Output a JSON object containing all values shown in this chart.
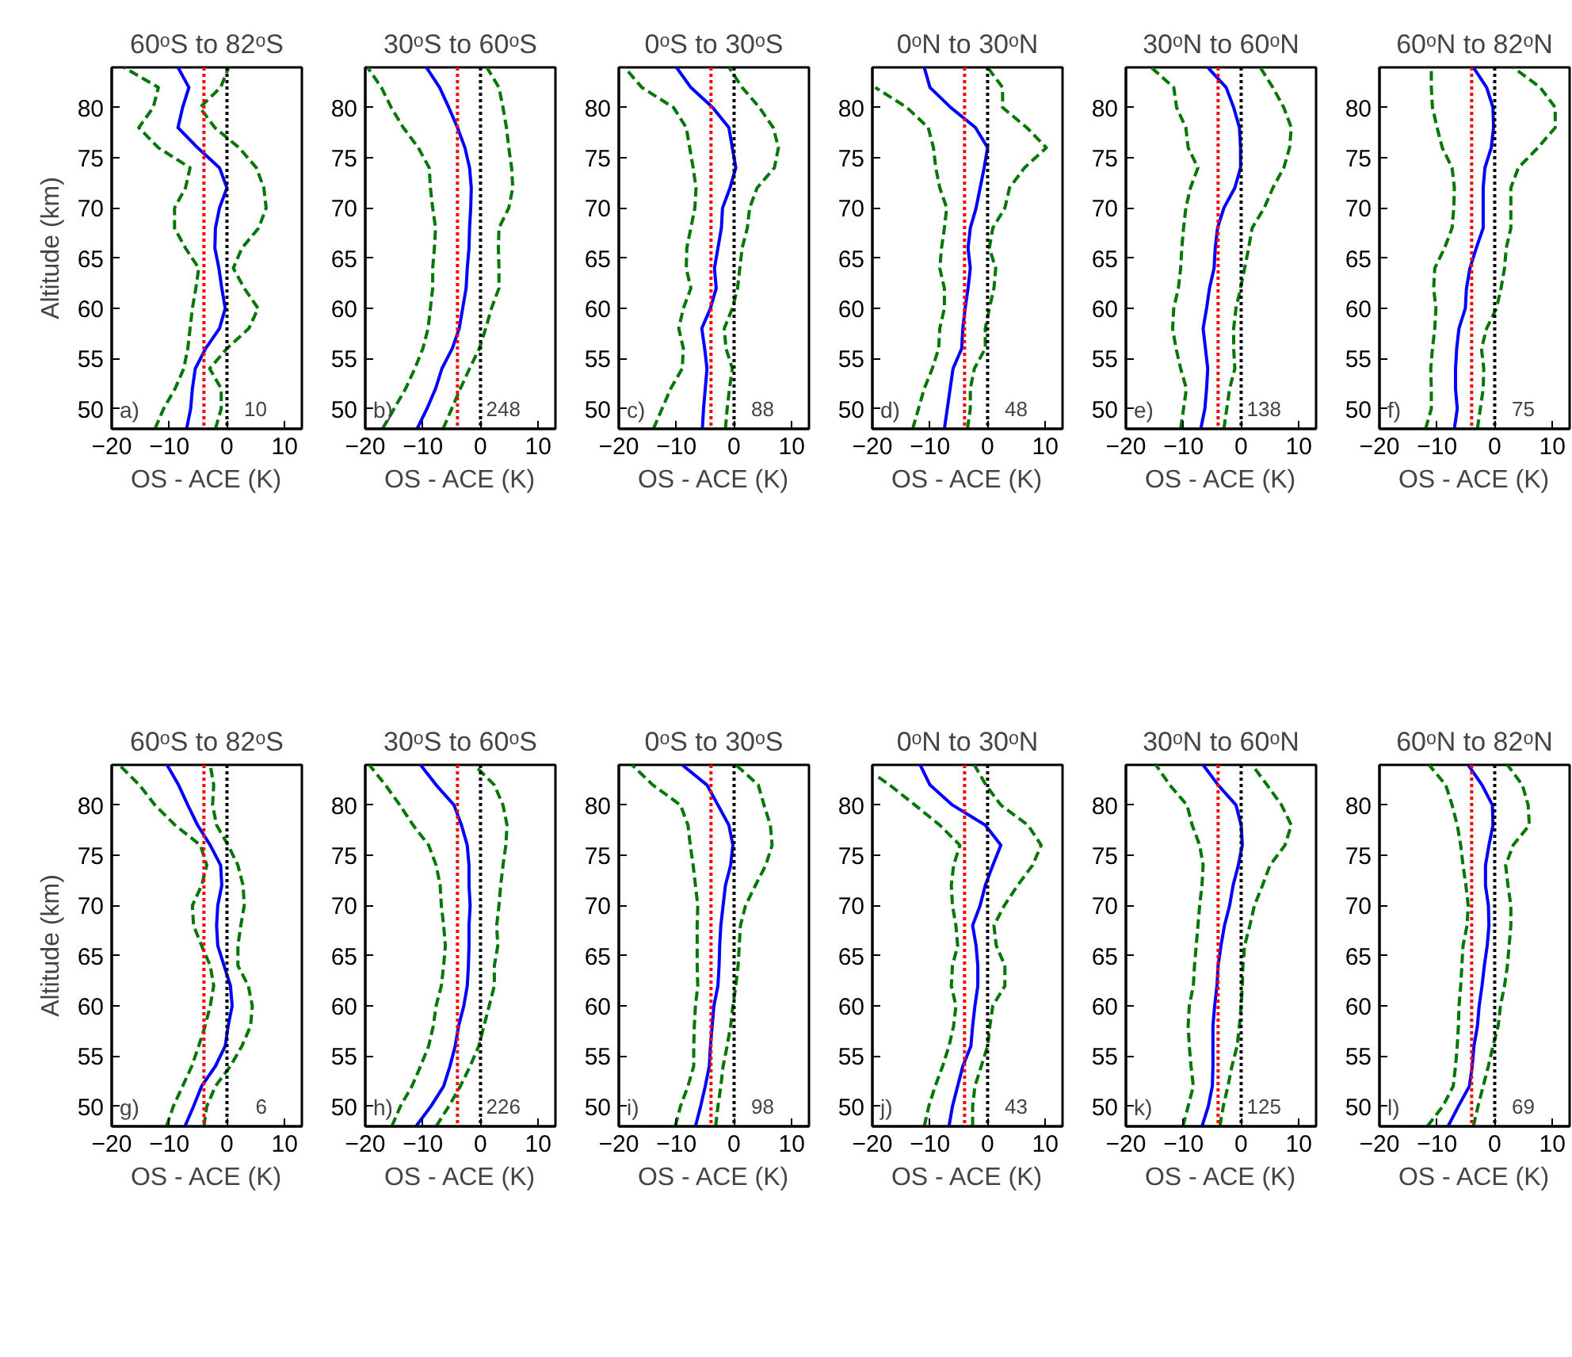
{
  "chart_data": [
    {
      "type": "line",
      "title": "60ᵒS to 82ᵒS",
      "xlabel": "OS - ACE (K)",
      "ylabel": "Altitude (km)",
      "xlim": [
        -20,
        13
      ],
      "ylim": [
        48,
        84
      ],
      "xticks": [
        -20,
        -10,
        0,
        10
      ],
      "yticks": [
        50,
        55,
        60,
        65,
        70,
        75,
        80
      ],
      "grid": false,
      "annotations": [
        "a)",
        "10"
      ],
      "ref_lines": [
        {
          "axis": "x",
          "value": -4,
          "color": "#ff0000",
          "line_style": "dotted"
        },
        {
          "axis": "x",
          "value": 0,
          "color": "#000000",
          "line_style": "dotted"
        }
      ],
      "series": [
        {
          "color": "#0000ff",
          "line_style": "solid",
          "x": [
            -7,
            -6.3,
            -6,
            -5.5,
            -3.7,
            -1.3,
            -0.3,
            -0.9,
            -1.4,
            -2.1,
            -2,
            -1.3,
            0,
            -1.3,
            -5.1,
            -8.5,
            -7.7,
            -6.6,
            -8.5
          ],
          "values": [
            48,
            50,
            52,
            54,
            56,
            58,
            60,
            62,
            64,
            66,
            68,
            70,
            72,
            74,
            76,
            78,
            80,
            82,
            84
          ]
        },
        {
          "color": "#007700",
          "line_style": "dashed",
          "x": [
            -12.5,
            -11,
            -9,
            -7.5,
            -6.8,
            -6.4,
            -6,
            -5.4,
            -4.9,
            -7.2,
            -9.1,
            -9.1,
            -7.2,
            -6.4,
            -11.9,
            -15.3,
            -12.8,
            -11.9,
            -17.9
          ],
          "values": [
            48,
            50,
            52,
            54,
            56,
            58,
            60,
            62,
            64,
            66,
            68,
            70,
            72,
            74,
            76,
            78,
            80,
            82,
            84
          ]
        },
        {
          "color": "#007700",
          "line_style": "dashed",
          "x": [
            -2,
            -1,
            -1,
            -3,
            0,
            3.8,
            5.4,
            3,
            1.1,
            2.6,
            5.5,
            6.8,
            6.4,
            5.1,
            2.1,
            -2.1,
            -4.7,
            -1.1,
            0.3
          ],
          "values": [
            48,
            50,
            52,
            54,
            56,
            58,
            60,
            62,
            64,
            66,
            68,
            70,
            72,
            74,
            76,
            78,
            80,
            82,
            84
          ]
        }
      ]
    },
    {
      "type": "line",
      "title": "30ᵒS to 60ᵒS",
      "xlabel": "OS - ACE (K)",
      "xlim": [
        -20,
        13
      ],
      "ylim": [
        48,
        84
      ],
      "xticks": [
        -20,
        -10,
        0,
        10
      ],
      "yticks": [
        50,
        55,
        60,
        65,
        70,
        75,
        80
      ],
      "grid": false,
      "annotations": [
        "b)",
        "248"
      ],
      "ref_lines": [
        {
          "axis": "x",
          "value": -4,
          "color": "#ff0000",
          "line_style": "dotted"
        },
        {
          "axis": "x",
          "value": 0,
          "color": "#000000",
          "line_style": "dotted"
        }
      ],
      "series": [
        {
          "color": "#0000ff",
          "line_style": "solid",
          "x": [
            -11,
            -9.3,
            -7.8,
            -6.7,
            -4.9,
            -3.7,
            -3.1,
            -2.5,
            -2.3,
            -2,
            -1.9,
            -1.7,
            -1.6,
            -1.9,
            -2.7,
            -4,
            -5.5,
            -7.1,
            -9.4
          ],
          "values": [
            48,
            50,
            52,
            54,
            56,
            58,
            60,
            62,
            64,
            66,
            68,
            70,
            72,
            74,
            76,
            78,
            80,
            82,
            84
          ]
        },
        {
          "color": "#007700",
          "line_style": "dashed",
          "x": [
            -17,
            -15,
            -13,
            -11.4,
            -10,
            -9.1,
            -8.7,
            -8.3,
            -8.3,
            -8,
            -7.8,
            -8.3,
            -8.7,
            -8.9,
            -10.8,
            -13.4,
            -15.5,
            -17.2,
            -19.6
          ],
          "values": [
            48,
            50,
            52,
            54,
            56,
            58,
            60,
            62,
            64,
            66,
            68,
            70,
            72,
            74,
            76,
            78,
            80,
            82,
            84
          ]
        },
        {
          "color": "#007700",
          "line_style": "dashed",
          "x": [
            -6.5,
            -5,
            -3.5,
            -1.9,
            -0.2,
            0.9,
            1.9,
            3.2,
            3.2,
            3.1,
            3.2,
            4.9,
            5.6,
            5.4,
            4.9,
            4.5,
            3.9,
            3.2,
            1.1
          ],
          "values": [
            48,
            50,
            52,
            54,
            56,
            58,
            60,
            62,
            64,
            66,
            68,
            70,
            72,
            74,
            76,
            78,
            80,
            82,
            84
          ]
        }
      ]
    },
    {
      "type": "line",
      "title": "0ᵒS to 30ᵒS",
      "xlabel": "OS - ACE (K)",
      "xlim": [
        -20,
        13
      ],
      "ylim": [
        48,
        84
      ],
      "xticks": [
        -20,
        -10,
        0,
        10
      ],
      "yticks": [
        50,
        55,
        60,
        65,
        70,
        75,
        80
      ],
      "grid": false,
      "annotations": [
        "c)",
        "88"
      ],
      "ref_lines": [
        {
          "axis": "x",
          "value": -4,
          "color": "#ff0000",
          "line_style": "dotted"
        },
        {
          "axis": "x",
          "value": 0,
          "color": "#000000",
          "line_style": "dotted"
        }
      ],
      "series": [
        {
          "color": "#0000ff",
          "line_style": "solid",
          "x": [
            -5.5,
            -5.3,
            -5,
            -4.7,
            -5.1,
            -5.6,
            -4.1,
            -3.1,
            -3.4,
            -2.8,
            -2.2,
            -2,
            -0.7,
            0.3,
            -0.3,
            -0.9,
            -3.7,
            -7.5,
            -10
          ],
          "values": [
            48,
            50,
            52,
            54,
            56,
            58,
            60,
            62,
            64,
            66,
            68,
            70,
            72,
            74,
            76,
            78,
            80,
            82,
            84
          ]
        },
        {
          "color": "#007700",
          "line_style": "dashed",
          "x": [
            -14,
            -12.5,
            -11,
            -9,
            -8.8,
            -9.6,
            -8.8,
            -7.5,
            -8.3,
            -8.2,
            -7.5,
            -6.8,
            -6.6,
            -7.1,
            -7.7,
            -8.3,
            -10.5,
            -16,
            -19
          ],
          "values": [
            48,
            50,
            52,
            54,
            56,
            58,
            60,
            62,
            64,
            66,
            68,
            70,
            72,
            74,
            76,
            78,
            80,
            82,
            84
          ]
        },
        {
          "color": "#007700",
          "line_style": "dashed",
          "x": [
            -1.5,
            -1.2,
            -0.8,
            -0.3,
            -1.4,
            -1.7,
            -0.3,
            0.6,
            1,
            1.4,
            2.3,
            2.7,
            4,
            7,
            7.7,
            6.8,
            4.4,
            1.4,
            -0.9
          ],
          "values": [
            48,
            50,
            52,
            54,
            56,
            58,
            60,
            62,
            64,
            66,
            68,
            70,
            72,
            74,
            76,
            78,
            80,
            82,
            84
          ]
        }
      ]
    },
    {
      "type": "line",
      "title": "0ᵒN to 30ᵒN",
      "xlabel": "OS - ACE (K)",
      "xlim": [
        -20,
        13
      ],
      "ylim": [
        48,
        84
      ],
      "xticks": [
        -20,
        -10,
        0,
        10
      ],
      "yticks": [
        50,
        55,
        60,
        65,
        70,
        75,
        80
      ],
      "grid": false,
      "annotations": [
        "d)",
        "48"
      ],
      "ref_lines": [
        {
          "axis": "x",
          "value": -4,
          "color": "#ff0000",
          "line_style": "dotted"
        },
        {
          "axis": "x",
          "value": 0,
          "color": "#000000",
          "line_style": "dotted"
        }
      ],
      "series": [
        {
          "color": "#0000ff",
          "line_style": "solid",
          "x": [
            -7.5,
            -7,
            -6.5,
            -6,
            -4.5,
            -4.3,
            -3.9,
            -3.4,
            -3,
            -3.4,
            -3,
            -2,
            -1.3,
            -0.6,
            0,
            -2.1,
            -6.4,
            -10,
            -11
          ],
          "values": [
            48,
            50,
            52,
            54,
            56,
            58,
            60,
            62,
            64,
            66,
            68,
            70,
            72,
            74,
            76,
            78,
            80,
            82,
            84
          ]
        },
        {
          "color": "#007700",
          "line_style": "dashed",
          "x": [
            -13,
            -12,
            -11,
            -9.6,
            -8.5,
            -8.3,
            -7.5,
            -7.5,
            -8.3,
            -8,
            -7.5,
            -7.1,
            -8.3,
            -9,
            -9.4,
            -10.3,
            -14,
            -19.5
          ],
          "values": [
            48,
            50,
            52,
            54,
            56,
            58,
            60,
            62,
            64,
            66,
            68,
            70,
            72,
            74,
            76,
            78,
            80,
            82
          ]
        },
        {
          "color": "#007700",
          "line_style": "dashed",
          "x": [
            -3.5,
            -3,
            -3,
            -2.3,
            -0.4,
            -0.4,
            0.3,
            1.1,
            1.4,
            0.3,
            0.9,
            3,
            3.8,
            6.4,
            10.2,
            6.8,
            2.6,
            2.6,
            0
          ],
          "values": [
            48,
            50,
            52,
            54,
            56,
            58,
            60,
            62,
            64,
            66,
            68,
            70,
            72,
            74,
            76,
            78,
            80,
            82,
            84
          ]
        }
      ]
    },
    {
      "type": "line",
      "title": "30ᵒN to 60ᵒN",
      "xlabel": "OS - ACE (K)",
      "xlim": [
        -20,
        13
      ],
      "ylim": [
        48,
        84
      ],
      "xticks": [
        -20,
        -10,
        0,
        10
      ],
      "yticks": [
        50,
        55,
        60,
        65,
        70,
        75,
        80
      ],
      "grid": false,
      "annotations": [
        "e)",
        "138"
      ],
      "ref_lines": [
        {
          "axis": "x",
          "value": -4,
          "color": "#ff0000",
          "line_style": "dotted"
        },
        {
          "axis": "x",
          "value": 0,
          "color": "#000000",
          "line_style": "dotted"
        }
      ],
      "series": [
        {
          "color": "#0000ff",
          "line_style": "solid",
          "x": [
            -7,
            -6.3,
            -6,
            -5.8,
            -6.2,
            -6.6,
            -6,
            -5.5,
            -4.7,
            -4.5,
            -4.1,
            -3,
            -1.1,
            -0.1,
            -0.1,
            -0.3,
            -1.3,
            -2.6,
            -5.8
          ],
          "values": [
            48,
            50,
            52,
            54,
            56,
            58,
            60,
            62,
            64,
            66,
            68,
            70,
            72,
            74,
            76,
            78,
            80,
            82,
            84
          ]
        },
        {
          "color": "#007700",
          "line_style": "dashed",
          "x": [
            -10.5,
            -10,
            -9.5,
            -10.5,
            -11.3,
            -11.9,
            -11.7,
            -10.9,
            -10.5,
            -10.3,
            -10,
            -9.6,
            -8.8,
            -7.5,
            -9.2,
            -9.6,
            -11.2,
            -11.7,
            -15.6
          ],
          "values": [
            48,
            50,
            52,
            54,
            56,
            58,
            60,
            62,
            64,
            66,
            68,
            70,
            72,
            74,
            76,
            78,
            80,
            82,
            84
          ]
        },
        {
          "color": "#007700",
          "line_style": "dashed",
          "x": [
            -3,
            -2.5,
            -2,
            -1.1,
            -1.3,
            -1.3,
            -0.9,
            -0.1,
            0.6,
            1.3,
            1.9,
            4,
            5.5,
            7.4,
            8.4,
            8.7,
            7.4,
            5.5,
            3.3
          ],
          "values": [
            48,
            50,
            52,
            54,
            56,
            58,
            60,
            62,
            64,
            66,
            68,
            70,
            72,
            74,
            76,
            78,
            80,
            82,
            84
          ]
        }
      ]
    },
    {
      "type": "line",
      "title": "60ᵒN to 82ᵒN",
      "xlabel": "OS - ACE (K)",
      "xlim": [
        -20,
        13
      ],
      "ylim": [
        48,
        84
      ],
      "xticks": [
        -20,
        -10,
        0,
        10
      ],
      "yticks": [
        50,
        55,
        60,
        65,
        70,
        75,
        80
      ],
      "grid": false,
      "annotations": [
        "f)",
        "75"
      ],
      "ref_lines": [
        {
          "axis": "x",
          "value": -4,
          "color": "#ff0000",
          "line_style": "dotted"
        },
        {
          "axis": "x",
          "value": 0,
          "color": "#000000",
          "line_style": "dotted"
        }
      ],
      "series": [
        {
          "color": "#0000ff",
          "line_style": "solid",
          "x": [
            -7,
            -6.5,
            -6.8,
            -6.8,
            -6.6,
            -6.2,
            -5.1,
            -4.9,
            -4.3,
            -3.2,
            -2,
            -2,
            -2,
            -1.7,
            -0.6,
            -0.2,
            -0.3,
            -1.4,
            -3.7
          ],
          "values": [
            48,
            50,
            52,
            54,
            56,
            58,
            60,
            62,
            64,
            66,
            68,
            70,
            72,
            74,
            76,
            78,
            80,
            82,
            84
          ]
        },
        {
          "color": "#007700",
          "line_style": "dashed",
          "x": [
            -12,
            -11,
            -11,
            -11.1,
            -10.8,
            -10.4,
            -10.2,
            -10.6,
            -10.4,
            -8.7,
            -7.4,
            -7.1,
            -7,
            -7.4,
            -9.1,
            -10,
            -10.8,
            -11,
            -11
          ],
          "values": [
            48,
            50,
            52,
            54,
            56,
            58,
            60,
            62,
            64,
            66,
            68,
            70,
            72,
            74,
            76,
            78,
            80,
            82,
            84
          ]
        },
        {
          "color": "#007700",
          "line_style": "dashed",
          "x": [
            -3,
            -2.5,
            -2,
            -1.9,
            -2.3,
            -1.4,
            0.3,
            1.1,
            1.7,
            2,
            2.8,
            2.8,
            2.8,
            4.1,
            7.5,
            10.5,
            10.5,
            7.9,
            3.2
          ],
          "values": [
            48,
            50,
            52,
            54,
            56,
            58,
            60,
            62,
            64,
            66,
            68,
            70,
            72,
            74,
            76,
            78,
            80,
            82,
            84
          ]
        }
      ]
    },
    {
      "type": "line",
      "title": "60ᵒS to 82ᵒS",
      "xlabel": "OS - ACE (K)",
      "ylabel": "Altitude (km)",
      "xlim": [
        -20,
        13
      ],
      "ylim": [
        48,
        84
      ],
      "xticks": [
        -20,
        -10,
        0,
        10
      ],
      "yticks": [
        50,
        55,
        60,
        65,
        70,
        75,
        80
      ],
      "grid": false,
      "annotations": [
        "g)",
        "6"
      ],
      "ref_lines": [
        {
          "axis": "x",
          "value": -4,
          "color": "#ff0000",
          "line_style": "dotted"
        },
        {
          "axis": "x",
          "value": 0,
          "color": "#000000",
          "line_style": "dotted"
        }
      ],
      "series": [
        {
          "color": "#0000ff",
          "line_style": "solid",
          "x": [
            -7.3,
            -5.8,
            -4.4,
            -2,
            -0.3,
            0.2,
            0.9,
            0.6,
            -0.5,
            -1.6,
            -1.8,
            -1.6,
            -0.9,
            -1.1,
            -2.9,
            -5.1,
            -6.8,
            -8.4,
            -10.4
          ],
          "values": [
            48,
            50,
            52,
            54,
            56,
            58,
            60,
            62,
            64,
            66,
            68,
            70,
            72,
            74,
            76,
            78,
            80,
            82,
            84
          ]
        },
        {
          "color": "#007700",
          "line_style": "dashed",
          "x": [
            -10.5,
            -9.3,
            -7.7,
            -6.1,
            -4.9,
            -3.8,
            -2.9,
            -2.3,
            -2.9,
            -4.4,
            -5.8,
            -6,
            -4.4,
            -3.5,
            -4.6,
            -9,
            -12.5,
            -15.2,
            -18.7
          ],
          "values": [
            48,
            50,
            52,
            54,
            56,
            58,
            60,
            62,
            64,
            66,
            68,
            70,
            72,
            74,
            76,
            78,
            80,
            82,
            84
          ]
        },
        {
          "color": "#007700",
          "line_style": "dashed",
          "x": [
            -4,
            -3.5,
            -2,
            0.6,
            2.6,
            4.1,
            4.4,
            3.7,
            1.9,
            1.9,
            2.4,
            3,
            2.8,
            1.9,
            0.2,
            -1.8,
            -2.5,
            -2.3,
            -2.9
          ],
          "values": [
            48,
            50,
            52,
            54,
            56,
            58,
            60,
            62,
            64,
            66,
            68,
            70,
            72,
            74,
            76,
            78,
            80,
            82,
            84
          ]
        }
      ]
    },
    {
      "type": "line",
      "title": "30ᵒS to 60ᵒS",
      "xlabel": "OS - ACE (K)",
      "xlim": [
        -20,
        13
      ],
      "ylim": [
        48,
        84
      ],
      "xticks": [
        -20,
        -10,
        0,
        10
      ],
      "yticks": [
        50,
        55,
        60,
        65,
        70,
        75,
        80
      ],
      "grid": false,
      "annotations": [
        "h)",
        "226"
      ],
      "ref_lines": [
        {
          "axis": "x",
          "value": -4,
          "color": "#ff0000",
          "line_style": "dotted"
        },
        {
          "axis": "x",
          "value": 0,
          "color": "#000000",
          "line_style": "dotted"
        }
      ],
      "series": [
        {
          "color": "#0000ff",
          "line_style": "solid",
          "x": [
            -11.2,
            -8.6,
            -6.4,
            -5.3,
            -4.4,
            -3.8,
            -2.9,
            -2.3,
            -2.1,
            -2,
            -2,
            -1.8,
            -2,
            -2,
            -2.3,
            -3.3,
            -4.6,
            -7.7,
            -10.4
          ],
          "values": [
            48,
            50,
            52,
            54,
            56,
            58,
            60,
            62,
            64,
            66,
            68,
            70,
            72,
            74,
            76,
            78,
            80,
            82,
            84
          ]
        },
        {
          "color": "#007700",
          "line_style": "dashed",
          "x": [
            -15.4,
            -13.9,
            -11.9,
            -10.4,
            -9,
            -8.2,
            -7.7,
            -6.8,
            -6.4,
            -6.1,
            -6.4,
            -6.8,
            -7,
            -7.7,
            -9,
            -11.7,
            -14,
            -16.5,
            -19.3
          ],
          "values": [
            48,
            50,
            52,
            54,
            56,
            58,
            60,
            62,
            64,
            66,
            68,
            70,
            72,
            74,
            76,
            78,
            80,
            82,
            84
          ]
        },
        {
          "color": "#007700",
          "line_style": "dashed",
          "x": [
            -7.7,
            -5.5,
            -3.5,
            -1.8,
            -0.3,
            0.6,
            1.5,
            2.4,
            2.4,
            3,
            2.8,
            3.2,
            3.5,
            3.9,
            4.4,
            4.6,
            3.9,
            2.4,
            -1.1
          ],
          "values": [
            48,
            50,
            52,
            54,
            56,
            58,
            60,
            62,
            64,
            66,
            68,
            70,
            72,
            74,
            76,
            78,
            80,
            82,
            84
          ]
        }
      ]
    },
    {
      "type": "line",
      "title": "0ᵒS to 30ᵒS",
      "xlabel": "OS - ACE (K)",
      "xlim": [
        -20,
        13
      ],
      "ylim": [
        48,
        84
      ],
      "xticks": [
        -20,
        -10,
        0,
        10
      ],
      "yticks": [
        50,
        55,
        60,
        65,
        70,
        75,
        80
      ],
      "grid": false,
      "annotations": [
        "i)",
        "98"
      ],
      "ref_lines": [
        {
          "axis": "x",
          "value": -4,
          "color": "#ff0000",
          "line_style": "dotted"
        },
        {
          "axis": "x",
          "value": 0,
          "color": "#000000",
          "line_style": "dotted"
        }
      ],
      "series": [
        {
          "color": "#0000ff",
          "line_style": "solid",
          "x": [
            -6.7,
            -5.8,
            -5,
            -4.3,
            -4.1,
            -3.8,
            -3.5,
            -2.8,
            -2.6,
            -2.5,
            -2.3,
            -1.9,
            -1.5,
            -0.6,
            -0.2,
            -0.9,
            -2.8,
            -4.7,
            -9
          ],
          "values": [
            48,
            50,
            52,
            54,
            56,
            58,
            60,
            62,
            64,
            66,
            68,
            70,
            72,
            74,
            76,
            78,
            80,
            82,
            84
          ]
        },
        {
          "color": "#007700",
          "line_style": "dashed",
          "x": [
            -10.2,
            -9.3,
            -8,
            -7,
            -7,
            -6.9,
            -6.7,
            -6.3,
            -6.4,
            -6.4,
            -6.4,
            -6.3,
            -6.7,
            -7.1,
            -7.6,
            -8,
            -9.3,
            -14.1,
            -17.7
          ],
          "values": [
            48,
            50,
            52,
            54,
            56,
            58,
            60,
            62,
            64,
            66,
            68,
            70,
            72,
            74,
            76,
            78,
            80,
            82,
            84
          ]
        },
        {
          "color": "#007700",
          "line_style": "dashed",
          "x": [
            -3.2,
            -2.8,
            -2.3,
            -1.9,
            -1.2,
            -0.6,
            -0.2,
            0.3,
            0.7,
            0.9,
            1.1,
            2,
            3.7,
            5.5,
            6.6,
            6.3,
            5.2,
            4.2,
            0.3
          ],
          "values": [
            48,
            50,
            52,
            54,
            56,
            58,
            60,
            62,
            64,
            66,
            68,
            70,
            72,
            74,
            76,
            78,
            80,
            82,
            84
          ]
        }
      ]
    },
    {
      "type": "line",
      "title": "0ᵒN to 30ᵒN",
      "xlabel": "OS - ACE (K)",
      "xlim": [
        -20,
        13
      ],
      "ylim": [
        48,
        84
      ],
      "xticks": [
        -20,
        -10,
        0,
        10
      ],
      "yticks": [
        50,
        55,
        60,
        65,
        70,
        75,
        80
      ],
      "grid": false,
      "annotations": [
        "j)",
        "43"
      ],
      "ref_lines": [
        {
          "axis": "x",
          "value": -4,
          "color": "#ff0000",
          "line_style": "dotted"
        },
        {
          "axis": "x",
          "value": 0,
          "color": "#000000",
          "line_style": "dotted"
        }
      ],
      "series": [
        {
          "color": "#0000ff",
          "line_style": "solid",
          "x": [
            -6.7,
            -6.1,
            -5.2,
            -4.3,
            -2.9,
            -2.6,
            -2.2,
            -1.7,
            -1.7,
            -2,
            -2.6,
            -1.3,
            -0.4,
            0.9,
            2.3,
            -0.4,
            -6.1,
            -10,
            -11.7
          ],
          "values": [
            48,
            50,
            52,
            54,
            56,
            58,
            60,
            62,
            64,
            66,
            68,
            70,
            72,
            74,
            76,
            78,
            80,
            82,
            84
          ]
        },
        {
          "color": "#007700",
          "line_style": "dashed",
          "x": [
            -11,
            -10.2,
            -9.1,
            -7.8,
            -6.7,
            -5.9,
            -5.5,
            -6.3,
            -6.1,
            -5.2,
            -5.5,
            -6.1,
            -6.3,
            -5.9,
            -4.8,
            -8.3,
            -12.6,
            -17,
            -19.5
          ],
          "values": [
            48,
            50,
            52,
            54,
            56,
            58,
            60,
            62,
            64,
            66,
            68,
            70,
            72,
            74,
            76,
            78,
            80,
            82,
            83
          ]
        },
        {
          "color": "#007700",
          "line_style": "dashed",
          "x": [
            -2.6,
            -2.6,
            -2.2,
            -1.1,
            0,
            0.4,
            0.9,
            3,
            3,
            1.5,
            1.1,
            2.9,
            5.2,
            7.8,
            9.3,
            7,
            2.3,
            -0.3,
            -2.3
          ],
          "values": [
            48,
            50,
            52,
            54,
            56,
            58,
            60,
            62,
            64,
            66,
            68,
            70,
            72,
            74,
            76,
            78,
            80,
            82,
            84
          ]
        }
      ]
    },
    {
      "type": "line",
      "title": "30ᵒN to 60ᵒN",
      "xlabel": "OS - ACE (K)",
      "xlim": [
        -20,
        13
      ],
      "ylim": [
        48,
        84
      ],
      "xticks": [
        -20,
        -10,
        0,
        10
      ],
      "yticks": [
        50,
        55,
        60,
        65,
        70,
        75,
        80
      ],
      "grid": false,
      "annotations": [
        "k)",
        "125"
      ],
      "ref_lines": [
        {
          "axis": "x",
          "value": -4,
          "color": "#ff0000",
          "line_style": "dotted"
        },
        {
          "axis": "x",
          "value": 0,
          "color": "#000000",
          "line_style": "dotted"
        }
      ],
      "series": [
        {
          "color": "#0000ff",
          "line_style": "solid",
          "x": [
            -6.8,
            -5.7,
            -5,
            -4.9,
            -4.9,
            -4.9,
            -4.6,
            -4.2,
            -4,
            -3.5,
            -2.9,
            -2,
            -1.4,
            -0.5,
            0.2,
            0,
            -0.9,
            -4,
            -6.6
          ],
          "values": [
            48,
            50,
            52,
            54,
            56,
            58,
            60,
            62,
            64,
            66,
            68,
            70,
            72,
            74,
            76,
            78,
            80,
            82,
            84
          ]
        },
        {
          "color": "#007700",
          "line_style": "dashed",
          "x": [
            -10.1,
            -9.2,
            -8.3,
            -8.7,
            -9,
            -9.2,
            -9,
            -8.3,
            -8.1,
            -7.8,
            -7.5,
            -7.2,
            -6.8,
            -6.6,
            -7.2,
            -8.5,
            -9.4,
            -12.4,
            -14.8
          ],
          "values": [
            48,
            50,
            52,
            54,
            56,
            58,
            60,
            62,
            64,
            66,
            68,
            70,
            72,
            74,
            76,
            78,
            80,
            82,
            84
          ]
        },
        {
          "color": "#007700",
          "line_style": "dashed",
          "x": [
            -3.7,
            -3.1,
            -2.3,
            -1.6,
            -0.7,
            -0.3,
            0,
            0.2,
            0.3,
            0.6,
            1.5,
            2.3,
            3.7,
            5,
            7.6,
            8.7,
            7,
            4.5,
            1.9
          ],
          "values": [
            48,
            50,
            52,
            54,
            56,
            58,
            60,
            62,
            64,
            66,
            68,
            70,
            72,
            74,
            76,
            78,
            80,
            82,
            84
          ]
        }
      ]
    },
    {
      "type": "line",
      "title": "60ᵒN to 82ᵒN",
      "xlabel": "OS - ACE (K)",
      "xlim": [
        -20,
        13
      ],
      "ylim": [
        48,
        84
      ],
      "xticks": [
        -20,
        -10,
        0,
        10
      ],
      "yticks": [
        50,
        55,
        60,
        65,
        70,
        75,
        80
      ],
      "grid": false,
      "annotations": [
        "l)",
        "69"
      ],
      "ref_lines": [
        {
          "axis": "x",
          "value": -4,
          "color": "#ff0000",
          "line_style": "dotted"
        },
        {
          "axis": "x",
          "value": 0,
          "color": "#000000",
          "line_style": "dotted"
        }
      ],
      "series": [
        {
          "color": "#0000ff",
          "line_style": "solid",
          "x": [
            -8.1,
            -6.3,
            -4.4,
            -3.9,
            -3.6,
            -3,
            -2.7,
            -2.2,
            -1.8,
            -1.3,
            -1,
            -1.1,
            -1.6,
            -1.6,
            -1,
            -0.3,
            -0.4,
            -2.2,
            -4.6
          ],
          "values": [
            48,
            50,
            52,
            54,
            56,
            58,
            60,
            62,
            64,
            66,
            68,
            70,
            72,
            74,
            76,
            78,
            80,
            82,
            84
          ]
        },
        {
          "color": "#007700",
          "line_style": "dashed",
          "x": [
            -11.7,
            -9,
            -7.2,
            -6.8,
            -6.5,
            -6.3,
            -6.2,
            -5.9,
            -5.7,
            -5.5,
            -4.8,
            -4.6,
            -5,
            -5.5,
            -5.9,
            -6.5,
            -7.4,
            -8.5,
            -11.4
          ],
          "values": [
            48,
            50,
            52,
            54,
            56,
            58,
            60,
            62,
            64,
            66,
            68,
            70,
            72,
            74,
            76,
            78,
            80,
            82,
            84
          ]
        },
        {
          "color": "#007700",
          "line_style": "dashed",
          "x": [
            -3.7,
            -2.9,
            -2,
            -1.1,
            -0.3,
            0.6,
            1,
            1.7,
            2.2,
            2.5,
            2.8,
            2.8,
            2.3,
            1.9,
            3.2,
            6,
            5.8,
            4.8,
            2.2
          ],
          "values": [
            48,
            50,
            52,
            54,
            56,
            58,
            60,
            62,
            64,
            66,
            68,
            70,
            72,
            74,
            76,
            78,
            80,
            82,
            84
          ]
        }
      ]
    }
  ]
}
